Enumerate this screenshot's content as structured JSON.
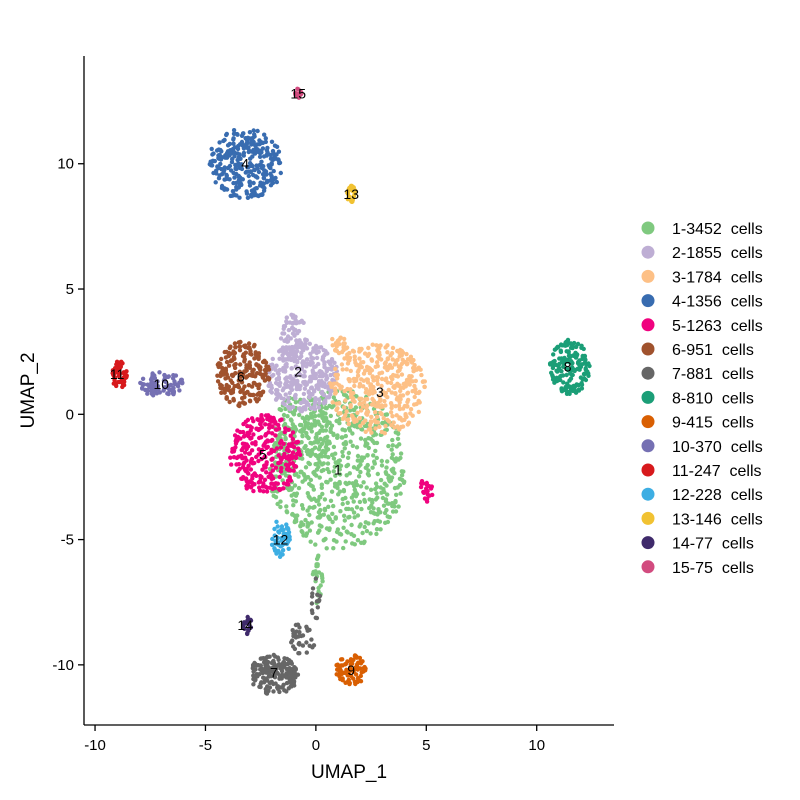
{
  "chart_data": {
    "type": "scatter",
    "xlabel": "UMAP_1",
    "ylabel": "UMAP_2",
    "xlim": [
      -10.5,
      13.5
    ],
    "ylim": [
      -12.4,
      14.3
    ],
    "x_ticks": [
      -10,
      -5,
      0,
      5,
      10
    ],
    "y_ticks": [
      -10,
      -5,
      0,
      5,
      10
    ],
    "grid": false,
    "legend_position": "right",
    "series": [
      {
        "name": "1-3452  cells",
        "cluster_label": "1",
        "color": "#7fc97f",
        "count": 3452,
        "center": [
          1.0,
          -2.2
        ],
        "regions": [
          {
            "cx": 1.0,
            "cy": -2.2,
            "rx": 3.1,
            "ry": 3.2,
            "n": 650
          },
          {
            "cx": -0.6,
            "cy": -1.0,
            "rx": 1.3,
            "ry": 2.0,
            "n": 120
          },
          {
            "cx": 0.1,
            "cy": -6.6,
            "rx": 0.25,
            "ry": 1.1,
            "n": 25
          }
        ]
      },
      {
        "name": "2-1855  cells",
        "cluster_label": "2",
        "color": "#beaed4",
        "count": 1855,
        "center": [
          -0.8,
          1.7
        ],
        "regions": [
          {
            "cx": -0.6,
            "cy": 1.5,
            "rx": 1.6,
            "ry": 1.4,
            "n": 320
          },
          {
            "cx": -1.0,
            "cy": 3.1,
            "rx": 0.6,
            "ry": 0.9,
            "n": 70
          }
        ]
      },
      {
        "name": "3-1784  cells",
        "cluster_label": "3",
        "color": "#fdc086",
        "count": 1784,
        "center": [
          2.9,
          0.9
        ],
        "regions": [
          {
            "cx": 2.8,
            "cy": 1.0,
            "rx": 2.2,
            "ry": 1.8,
            "n": 380
          },
          {
            "cx": 1.1,
            "cy": 2.8,
            "rx": 0.45,
            "ry": 0.4,
            "n": 25
          }
        ]
      },
      {
        "name": "4-1356  cells",
        "cluster_label": "4",
        "color": "#386cb0",
        "count": 1356,
        "center": [
          -3.2,
          10.0
        ],
        "regions": [
          {
            "cx": -3.2,
            "cy": 10.0,
            "rx": 1.7,
            "ry": 1.4,
            "n": 300
          }
        ]
      },
      {
        "name": "5-1263  cells",
        "cluster_label": "5",
        "color": "#f0027f",
        "count": 1263,
        "center": [
          -2.4,
          -1.6
        ],
        "regions": [
          {
            "cx": -2.3,
            "cy": -1.6,
            "rx": 1.6,
            "ry": 1.6,
            "n": 280
          },
          {
            "cx": 5.0,
            "cy": -3.0,
            "rx": 0.3,
            "ry": 0.5,
            "n": 20
          }
        ]
      },
      {
        "name": "6-951  cells",
        "cluster_label": "6",
        "color": "#a0522d",
        "count": 951,
        "center": [
          -3.4,
          1.5
        ],
        "regions": [
          {
            "cx": -3.3,
            "cy": 1.6,
            "rx": 1.2,
            "ry": 1.3,
            "n": 210
          }
        ]
      },
      {
        "name": "7-881  cells",
        "cluster_label": "7",
        "color": "#666666",
        "count": 881,
        "center": [
          -1.9,
          -10.3
        ],
        "regions": [
          {
            "cx": -1.9,
            "cy": -10.4,
            "rx": 1.1,
            "ry": 0.8,
            "n": 170
          },
          {
            "cx": -0.6,
            "cy": -8.9,
            "rx": 0.6,
            "ry": 0.7,
            "n": 35
          },
          {
            "cx": 0.0,
            "cy": -7.5,
            "rx": 0.2,
            "ry": 1.0,
            "n": 15
          }
        ]
      },
      {
        "name": "8-810  cells",
        "cluster_label": "8",
        "color": "#1b9e77",
        "count": 810,
        "center": [
          11.4,
          1.9
        ],
        "regions": [
          {
            "cx": 11.5,
            "cy": 1.9,
            "rx": 0.9,
            "ry": 1.1,
            "n": 170
          }
        ]
      },
      {
        "name": "9-415  cells",
        "cluster_label": "9",
        "color": "#d95f02",
        "count": 415,
        "center": [
          1.6,
          -10.2
        ],
        "regions": [
          {
            "cx": 1.6,
            "cy": -10.2,
            "rx": 0.7,
            "ry": 0.6,
            "n": 90
          }
        ]
      },
      {
        "name": "10-370  cells",
        "cluster_label": "10",
        "color": "#7570b3",
        "count": 370,
        "center": [
          -7.0,
          1.2
        ],
        "regions": [
          {
            "cx": -7.0,
            "cy": 1.2,
            "rx": 1.0,
            "ry": 0.5,
            "n": 80
          }
        ]
      },
      {
        "name": "11-247  cells",
        "cluster_label": "11",
        "color": "#d7191c",
        "count": 247,
        "center": [
          -9.0,
          1.6
        ],
        "regions": [
          {
            "cx": -8.9,
            "cy": 1.6,
            "rx": 0.35,
            "ry": 0.6,
            "n": 55
          }
        ]
      },
      {
        "name": "12-228  cells",
        "cluster_label": "12",
        "color": "#3daee3",
        "count": 228,
        "center": [
          -1.6,
          -5.0
        ],
        "regions": [
          {
            "cx": -1.6,
            "cy": -5.0,
            "rx": 0.45,
            "ry": 0.8,
            "n": 50
          }
        ]
      },
      {
        "name": "13-146  cells",
        "cluster_label": "13",
        "color": "#f1c232",
        "count": 146,
        "center": [
          1.6,
          8.8
        ],
        "regions": [
          {
            "cx": 1.6,
            "cy": 8.8,
            "rx": 0.2,
            "ry": 0.35,
            "n": 30
          }
        ]
      },
      {
        "name": "14-77  cells",
        "cluster_label": "14",
        "color": "#3f2a6b",
        "count": 77,
        "center": [
          -3.2,
          -8.4
        ],
        "regions": [
          {
            "cx": -3.1,
            "cy": -8.4,
            "rx": 0.2,
            "ry": 0.4,
            "n": 18
          }
        ]
      },
      {
        "name": "15-75  cells",
        "cluster_label": "15",
        "color": "#d24b7f",
        "count": 75,
        "center": [
          -0.8,
          12.8
        ],
        "regions": [
          {
            "cx": -0.8,
            "cy": 12.8,
            "rx": 0.15,
            "ry": 0.2,
            "n": 15
          }
        ]
      }
    ]
  }
}
